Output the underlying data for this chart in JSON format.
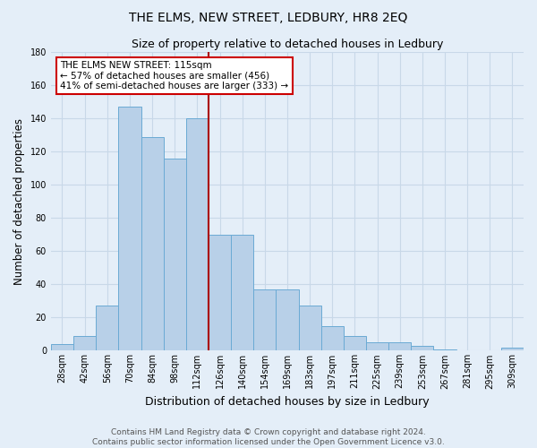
{
  "title": "THE ELMS, NEW STREET, LEDBURY, HR8 2EQ",
  "subtitle": "Size of property relative to detached houses in Ledbury",
  "xlabel": "Distribution of detached houses by size in Ledbury",
  "ylabel": "Number of detached properties",
  "footer_line1": "Contains HM Land Registry data © Crown copyright and database right 2024.",
  "footer_line2": "Contains public sector information licensed under the Open Government Licence v3.0.",
  "bar_labels": [
    "28sqm",
    "42sqm",
    "56sqm",
    "70sqm",
    "84sqm",
    "98sqm",
    "112sqm",
    "126sqm",
    "140sqm",
    "154sqm",
    "169sqm",
    "183sqm",
    "197sqm",
    "211sqm",
    "225sqm",
    "239sqm",
    "253sqm",
    "267sqm",
    "281sqm",
    "295sqm",
    "309sqm"
  ],
  "bar_values": [
    4,
    9,
    27,
    147,
    129,
    116,
    140,
    70,
    70,
    37,
    37,
    27,
    15,
    9,
    5,
    5,
    3,
    1,
    0,
    0,
    2
  ],
  "bar_color": "#b8d0e8",
  "bar_edge_color": "#6aaad4",
  "grid_color": "#c8d8e8",
  "bg_color": "#e4eef8",
  "property_label": "THE ELMS NEW STREET: 115sqm",
  "pct_smaller": 57,
  "count_smaller": 456,
  "pct_larger_semi": 41,
  "count_larger_semi": 333,
  "vline_color": "#aa0000",
  "annotation_box_facecolor": "#ffffff",
  "annotation_box_edgecolor": "#cc0000",
  "ylim": [
    0,
    180
  ],
  "yticks": [
    0,
    20,
    40,
    60,
    80,
    100,
    120,
    140,
    160,
    180
  ],
  "title_fontsize": 10,
  "subtitle_fontsize": 9,
  "ylabel_fontsize": 8.5,
  "xlabel_fontsize": 9,
  "tick_fontsize": 7,
  "ann_fontsize": 7.5,
  "footer_fontsize": 6.5
}
